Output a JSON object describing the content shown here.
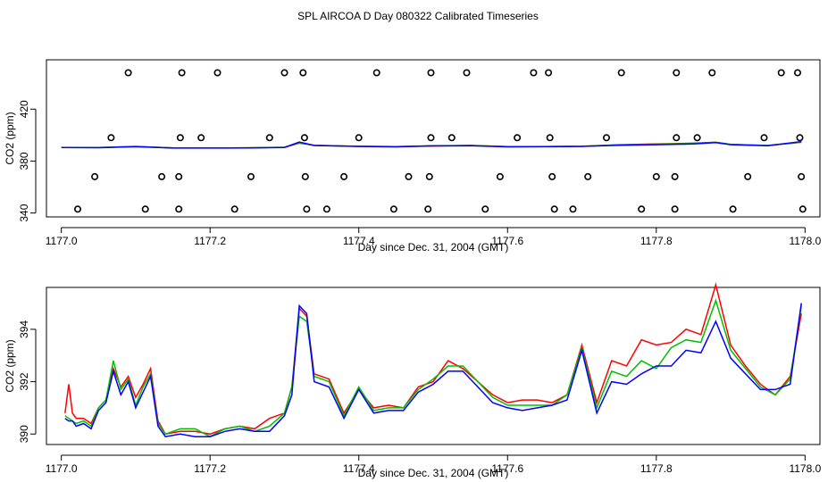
{
  "title": "SPL AIRCOA D  Day 080322  Calibrated Timeseries",
  "colors": {
    "series1": "#ff0000",
    "series2": "#00c000",
    "series3": "#0000ff",
    "axis": "#000000"
  },
  "chart_data": [
    {
      "type": "scatter",
      "panel": "top",
      "xlabel": "Day since Dec. 31, 2004 (GMT)",
      "ylabel": "CO2 (ppm)",
      "xlim": [
        1176.98,
        1178.02
      ],
      "ylim": [
        337,
        458
      ],
      "xticks": [
        1177.0,
        1177.2,
        1177.4,
        1177.6,
        1177.8,
        1178.0
      ],
      "xtick_labels": [
        "1177.0",
        "1177.2",
        "1177.4",
        "1177.6",
        "1177.8",
        "1178.0"
      ],
      "yticks": [
        340,
        380,
        420
      ],
      "ytick_labels": [
        "340",
        "380",
        "420"
      ],
      "points": {
        "x": [
          1177.09,
          1177.162,
          1177.21,
          1177.3,
          1177.325,
          1177.424,
          1177.497,
          1177.545,
          1177.635,
          1177.655,
          1177.753,
          1177.827,
          1177.875,
          1177.968,
          1177.99,
          1177.067,
          1177.16,
          1177.188,
          1177.28,
          1177.327,
          1177.4,
          1177.497,
          1177.525,
          1177.613,
          1177.657,
          1177.733,
          1177.827,
          1177.855,
          1177.945,
          1177.993,
          1177.045,
          1177.135,
          1177.158,
          1177.255,
          1177.328,
          1177.38,
          1177.467,
          1177.495,
          1177.59,
          1177.66,
          1177.708,
          1177.8,
          1177.825,
          1177.923,
          1177.995,
          1177.022,
          1177.113,
          1177.158,
          1177.233,
          1177.33,
          1177.357,
          1177.447,
          1177.493,
          1177.57,
          1177.663,
          1177.688,
          1177.78,
          1177.825,
          1177.903,
          1177.997
        ],
        "y": [
          448,
          448,
          448,
          448,
          448,
          448,
          448,
          448,
          448,
          448,
          448,
          448,
          448,
          448,
          448,
          398,
          398,
          398,
          398,
          398,
          398,
          398,
          398,
          398,
          398,
          398,
          398,
          398,
          398,
          398,
          368,
          368,
          368,
          368,
          368,
          368,
          368,
          368,
          368,
          368,
          368,
          368,
          368,
          368,
          368,
          343,
          343,
          343,
          343,
          343,
          343,
          343,
          343,
          343,
          343,
          343,
          343,
          343,
          343,
          343
        ]
      },
      "series": [
        {
          "name": "series1",
          "color": "#ff0000",
          "x": [
            1177.0,
            1177.05,
            1177.1,
            1177.15,
            1177.2,
            1177.25,
            1177.3,
            1177.32,
            1177.34,
            1177.4,
            1177.45,
            1177.5,
            1177.55,
            1177.6,
            1177.65,
            1177.7,
            1177.75,
            1177.8,
            1177.85,
            1177.88,
            1177.9,
            1177.95,
            1177.995
          ],
          "values": [
            390.5,
            390.4,
            391.2,
            390.2,
            390.1,
            390.2,
            390.6,
            393.8,
            392.2,
            391.3,
            391.2,
            391.6,
            392.1,
            391.2,
            391.2,
            391.4,
            392.6,
            393.2,
            393.8,
            394.5,
            392.8,
            392.0,
            394.5
          ]
        },
        {
          "name": "series2",
          "color": "#00c000",
          "x": [
            1177.0,
            1177.05,
            1177.1,
            1177.15,
            1177.2,
            1177.25,
            1177.3,
            1177.32,
            1177.34,
            1177.4,
            1177.45,
            1177.5,
            1177.55,
            1177.6,
            1177.65,
            1177.7,
            1177.75,
            1177.8,
            1177.85,
            1177.88,
            1177.9,
            1177.95,
            1177.995
          ],
          "values": [
            390.5,
            390.4,
            391.3,
            390.1,
            390.1,
            390.2,
            390.6,
            394.2,
            392.1,
            391.4,
            391.2,
            391.8,
            392.0,
            391.1,
            391.2,
            391.4,
            392.4,
            393.0,
            393.6,
            394.5,
            392.9,
            392.0,
            394.6
          ]
        },
        {
          "name": "series3",
          "color": "#0000ff",
          "x": [
            1177.0,
            1177.05,
            1177.1,
            1177.15,
            1177.2,
            1177.25,
            1177.3,
            1177.32,
            1177.34,
            1177.4,
            1177.45,
            1177.5,
            1177.55,
            1177.6,
            1177.65,
            1177.7,
            1177.75,
            1177.8,
            1177.85,
            1177.88,
            1177.9,
            1177.95,
            1177.995
          ],
          "values": [
            390.5,
            390.3,
            391.2,
            390.0,
            390.0,
            390.1,
            390.5,
            394.6,
            392.0,
            391.3,
            391.0,
            391.7,
            391.8,
            391.0,
            391.1,
            391.3,
            392.2,
            392.6,
            393.2,
            394.2,
            392.6,
            391.8,
            395.0
          ]
        }
      ]
    },
    {
      "type": "line",
      "panel": "bottom",
      "xlabel": "Day since Dec. 31, 2004 (GMT)",
      "ylabel": "CO2 (ppm)",
      "xlim": [
        1176.98,
        1178.02
      ],
      "ylim": [
        389.6,
        395.6
      ],
      "xticks": [
        1177.0,
        1177.2,
        1177.4,
        1177.6,
        1177.8,
        1178.0
      ],
      "xtick_labels": [
        "1177.0",
        "1177.2",
        "1177.4",
        "1177.6",
        "1177.8",
        "1178.0"
      ],
      "yticks": [
        390,
        392,
        394
      ],
      "ytick_labels": [
        "390",
        "392",
        "394"
      ],
      "series": [
        {
          "name": "series1",
          "color": "#ff0000",
          "x": [
            1177.005,
            1177.01,
            1177.015,
            1177.02,
            1177.03,
            1177.04,
            1177.05,
            1177.06,
            1177.07,
            1177.08,
            1177.09,
            1177.1,
            1177.11,
            1177.12,
            1177.13,
            1177.14,
            1177.16,
            1177.18,
            1177.2,
            1177.22,
            1177.24,
            1177.26,
            1177.28,
            1177.3,
            1177.31,
            1177.32,
            1177.33,
            1177.34,
            1177.36,
            1177.38,
            1177.4,
            1177.42,
            1177.44,
            1177.46,
            1177.48,
            1177.5,
            1177.52,
            1177.54,
            1177.56,
            1177.58,
            1177.6,
            1177.62,
            1177.64,
            1177.66,
            1177.68,
            1177.7,
            1177.72,
            1177.74,
            1177.76,
            1177.78,
            1177.8,
            1177.82,
            1177.84,
            1177.86,
            1177.88,
            1177.9,
            1177.92,
            1177.94,
            1177.96,
            1177.98,
            1177.995
          ],
          "values": [
            390.8,
            391.9,
            390.8,
            390.6,
            390.6,
            390.4,
            391.0,
            391.3,
            392.5,
            391.8,
            392.2,
            391.4,
            391.9,
            392.5,
            390.5,
            390.0,
            390.1,
            390.1,
            390.0,
            390.2,
            390.3,
            390.2,
            390.6,
            390.8,
            391.8,
            394.8,
            394.5,
            392.3,
            392.1,
            390.8,
            391.7,
            391.0,
            391.1,
            391.0,
            391.8,
            392.0,
            392.8,
            392.5,
            392.0,
            391.5,
            391.2,
            391.3,
            391.3,
            391.2,
            391.5,
            393.4,
            391.2,
            392.8,
            392.6,
            393.6,
            393.4,
            393.5,
            394.0,
            393.8,
            395.7,
            393.4,
            392.6,
            391.9,
            391.5,
            392.2,
            394.6
          ]
        },
        {
          "name": "series2",
          "color": "#00c000",
          "x": [
            1177.005,
            1177.01,
            1177.015,
            1177.02,
            1177.03,
            1177.04,
            1177.05,
            1177.06,
            1177.07,
            1177.08,
            1177.09,
            1177.1,
            1177.11,
            1177.12,
            1177.13,
            1177.14,
            1177.16,
            1177.18,
            1177.2,
            1177.22,
            1177.24,
            1177.26,
            1177.28,
            1177.3,
            1177.31,
            1177.32,
            1177.33,
            1177.34,
            1177.36,
            1177.38,
            1177.4,
            1177.42,
            1177.44,
            1177.46,
            1177.48,
            1177.5,
            1177.52,
            1177.54,
            1177.56,
            1177.58,
            1177.6,
            1177.62,
            1177.64,
            1177.66,
            1177.68,
            1177.7,
            1177.72,
            1177.74,
            1177.76,
            1177.78,
            1177.8,
            1177.82,
            1177.84,
            1177.86,
            1177.88,
            1177.9,
            1177.92,
            1177.94,
            1177.96,
            1177.98,
            1177.995
          ],
          "values": [
            390.7,
            390.6,
            390.5,
            390.4,
            390.5,
            390.3,
            391.0,
            391.3,
            392.8,
            391.7,
            392.1,
            391.1,
            391.8,
            392.3,
            390.4,
            390.0,
            390.2,
            390.2,
            389.9,
            390.2,
            390.3,
            390.1,
            390.3,
            390.8,
            391.8,
            394.5,
            394.3,
            392.2,
            392.0,
            390.7,
            391.8,
            390.9,
            391.0,
            391.0,
            391.7,
            392.1,
            392.6,
            392.6,
            392.0,
            391.4,
            391.1,
            391.1,
            391.1,
            391.1,
            391.5,
            393.3,
            391.0,
            392.4,
            392.2,
            392.8,
            392.5,
            393.3,
            393.6,
            393.5,
            395.1,
            393.2,
            392.5,
            391.8,
            391.5,
            392.1,
            394.9
          ]
        },
        {
          "name": "series3",
          "color": "#0000ff",
          "x": [
            1177.005,
            1177.01,
            1177.015,
            1177.02,
            1177.03,
            1177.04,
            1177.05,
            1177.06,
            1177.07,
            1177.08,
            1177.09,
            1177.1,
            1177.11,
            1177.12,
            1177.13,
            1177.14,
            1177.16,
            1177.18,
            1177.2,
            1177.22,
            1177.24,
            1177.26,
            1177.28,
            1177.3,
            1177.31,
            1177.32,
            1177.33,
            1177.34,
            1177.36,
            1177.38,
            1177.4,
            1177.42,
            1177.44,
            1177.46,
            1177.48,
            1177.5,
            1177.52,
            1177.54,
            1177.56,
            1177.58,
            1177.6,
            1177.62,
            1177.64,
            1177.66,
            1177.68,
            1177.7,
            1177.72,
            1177.74,
            1177.76,
            1177.78,
            1177.8,
            1177.82,
            1177.84,
            1177.86,
            1177.88,
            1177.9,
            1177.92,
            1177.94,
            1177.96,
            1177.98,
            1177.995
          ],
          "values": [
            390.6,
            390.5,
            390.5,
            390.3,
            390.4,
            390.2,
            390.9,
            391.2,
            392.4,
            391.5,
            392.0,
            391.0,
            391.6,
            392.2,
            390.3,
            389.9,
            390.0,
            389.9,
            389.9,
            390.1,
            390.2,
            390.1,
            390.1,
            390.7,
            391.5,
            394.9,
            394.6,
            392.0,
            391.8,
            390.6,
            391.7,
            390.8,
            390.9,
            390.9,
            391.6,
            391.9,
            392.4,
            392.4,
            391.8,
            391.2,
            391.0,
            390.9,
            391.0,
            391.1,
            391.3,
            393.2,
            390.8,
            392.0,
            391.9,
            392.3,
            392.6,
            392.6,
            393.2,
            393.1,
            394.3,
            392.9,
            392.3,
            391.7,
            391.7,
            391.9,
            395.0
          ]
        }
      ]
    }
  ]
}
